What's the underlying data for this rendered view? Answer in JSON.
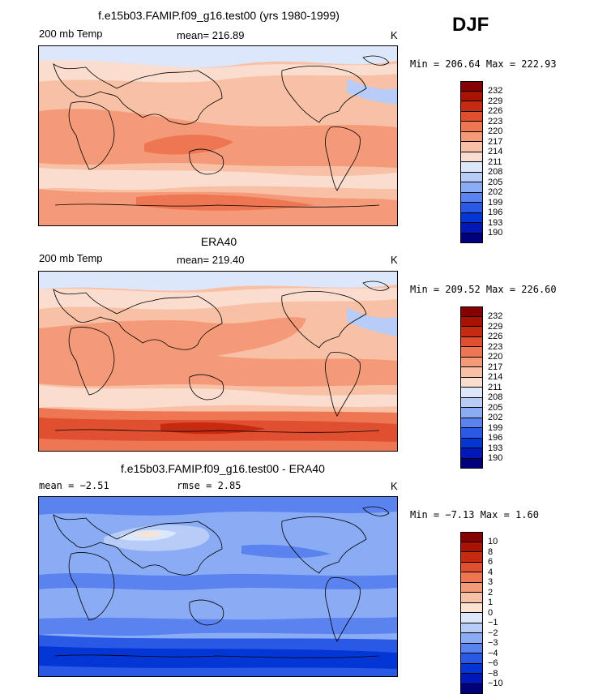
{
  "season": "DJF",
  "colors": {
    "warm_scale": [
      "#00007c",
      "#0018b8",
      "#0436d6",
      "#2a59e6",
      "#5b83ef",
      "#8aacf5",
      "#b7cdf8",
      "#dce7fb",
      "#fbddd0",
      "#f8c1a6",
      "#f59a79",
      "#ee7652",
      "#e04f30",
      "#c62a10",
      "#a81304",
      "#860201"
    ],
    "diff_scale": [
      "#00007c",
      "#0018b8",
      "#0436d6",
      "#2a59e6",
      "#5b83ef",
      "#8aacf5",
      "#b7cdf8",
      "#dce7fb",
      "#fbe3cf",
      "#f8c1a6",
      "#f59a79",
      "#ee7652",
      "#e04f30",
      "#c62a10",
      "#a81304",
      "#860201"
    ]
  },
  "panels": [
    {
      "title": "f.e15b03.FAMIP.f09_g16.test00 (yrs 1980-1999)",
      "variable": "200 mb Temp",
      "stat_text": "mean=  216.89",
      "units": "K",
      "minmax": "Min = 206.64  Max = 222.93",
      "levels": [
        "232",
        "229",
        "226",
        "223",
        "220",
        "217",
        "214",
        "211",
        "208",
        "205",
        "202",
        "199",
        "196",
        "193",
        "190"
      ]
    },
    {
      "title": "ERA40",
      "variable": "200 mb Temp",
      "stat_text": "mean=  219.40",
      "units": "K",
      "minmax": "Min = 209.52  Max = 226.60",
      "levels": [
        "232",
        "229",
        "226",
        "223",
        "220",
        "217",
        "214",
        "211",
        "208",
        "205",
        "202",
        "199",
        "196",
        "193",
        "190"
      ]
    },
    {
      "title": "f.e15b03.FAMIP.f09_g16.test00 - ERA40",
      "mean_label": "mean =   −2.51",
      "rmse_label": "rmse =    2.85",
      "units": "K",
      "minmax": "Min =  −7.13  Max =    1.60",
      "levels": [
        "10",
        "8",
        "6",
        "4",
        "3",
        "2",
        "1",
        "0",
        "−1",
        "−2",
        "−3",
        "−4",
        "−6",
        "−8",
        "−10"
      ]
    }
  ]
}
